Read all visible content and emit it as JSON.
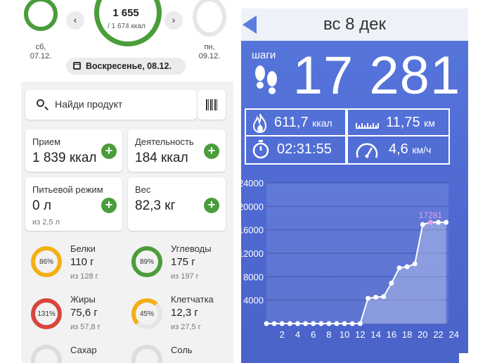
{
  "left": {
    "prev_day": "сб,\n07.12.",
    "next_day": "пн,\n09.12.",
    "center_kcal": "1 655",
    "center_goal": "/ 1 674 ккал",
    "nav_prev": "‹",
    "nav_next": "›",
    "date": "Воскресенье, 08.12.",
    "search_placeholder": "Найди продукт",
    "tiles": [
      {
        "title": "Прием",
        "value": "1 839 ккал",
        "sub": ""
      },
      {
        "title": "Деятельность",
        "value": "184 ккал",
        "sub": ""
      },
      {
        "title": "Питьевой режим",
        "value": "0 л",
        "sub": "из 2,5 л"
      },
      {
        "title": "Вес",
        "value": "82,3 кг",
        "sub": ""
      }
    ],
    "macros": [
      {
        "name": "Белки",
        "value": "110 г",
        "goal": "из 128 г",
        "pct": "86%",
        "color": "#f2b015"
      },
      {
        "name": "Углеводы",
        "value": "175 г",
        "goal": "из 197 г",
        "pct": "89%",
        "color": "#4a9d3a"
      },
      {
        "name": "Жиры",
        "value": "75,6 г",
        "goal": "из 57,8 г",
        "pct": "131%",
        "color": "#d9453b"
      },
      {
        "name": "Клетчатка",
        "value": "12,3 г",
        "goal": "из 27,5 г",
        "pct": "45%",
        "color": "#f2b015"
      },
      {
        "name": "Сахар",
        "value": "",
        "goal": "",
        "pct": "",
        "color": "#dddddd"
      },
      {
        "name": "Соль",
        "value": "",
        "goal": "",
        "pct": "",
        "color": "#dddddd"
      }
    ],
    "accent": "#4a9d3a"
  },
  "right": {
    "title": "вс 8 дек",
    "steps_label": "шаги",
    "steps_value": "17 281",
    "calories": "611,7",
    "calories_unit": "ккал",
    "distance": "11,75",
    "distance_unit": "км",
    "duration": "02:31:55",
    "speed": "4,6",
    "speed_unit": "км/ч",
    "background": "#4f6bd6"
  },
  "chart_data": {
    "type": "line",
    "x": [
      0,
      1,
      2,
      3,
      4,
      5,
      6,
      7,
      8,
      9,
      10,
      11,
      12,
      13,
      14,
      15,
      16,
      17,
      18,
      19,
      20,
      21,
      22,
      23
    ],
    "values": [
      0,
      0,
      0,
      0,
      0,
      0,
      0,
      0,
      0,
      0,
      0,
      0,
      0,
      4300,
      4500,
      4600,
      6900,
      9500,
      9700,
      10200,
      16900,
      17281,
      17281,
      17281
    ],
    "y_ticks": [
      "4000",
      "8000",
      "12000",
      "16000",
      "20000",
      "24000"
    ],
    "x_ticks": [
      "2",
      "4",
      "6",
      "8",
      "10",
      "12",
      "14",
      "16",
      "18",
      "20",
      "22",
      "24"
    ],
    "ylim": [
      0,
      24000
    ],
    "peak_label": "17281",
    "grid": true
  }
}
